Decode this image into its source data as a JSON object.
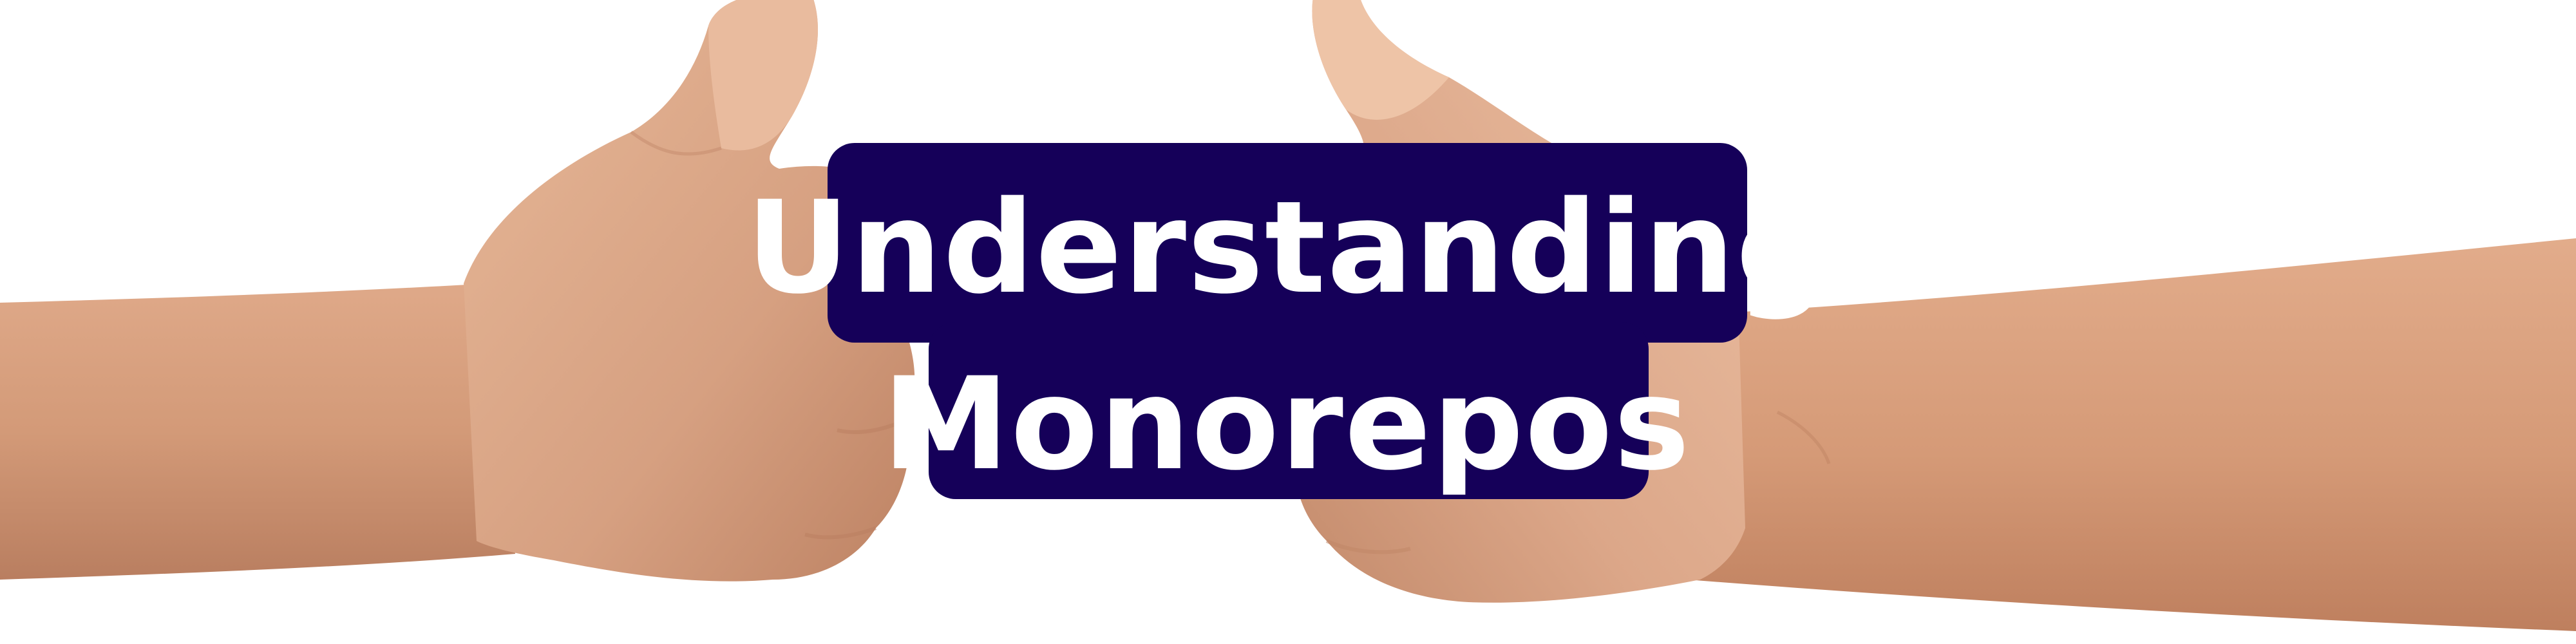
{
  "banner": {
    "title_line_1": "Understanding",
    "title_line_2": "Monorepos"
  },
  "colors": {
    "background": "#ffffff",
    "label_background": "#150059",
    "label_text": "#ffffff",
    "skin_light": "#e9bb9e",
    "skin_mid": "#d8a07f",
    "skin_shadow": "#b9785a"
  },
  "icons": {
    "left_hand": "thumbs-up-left-hand",
    "right_hand": "thumbs-up-right-hand"
  }
}
